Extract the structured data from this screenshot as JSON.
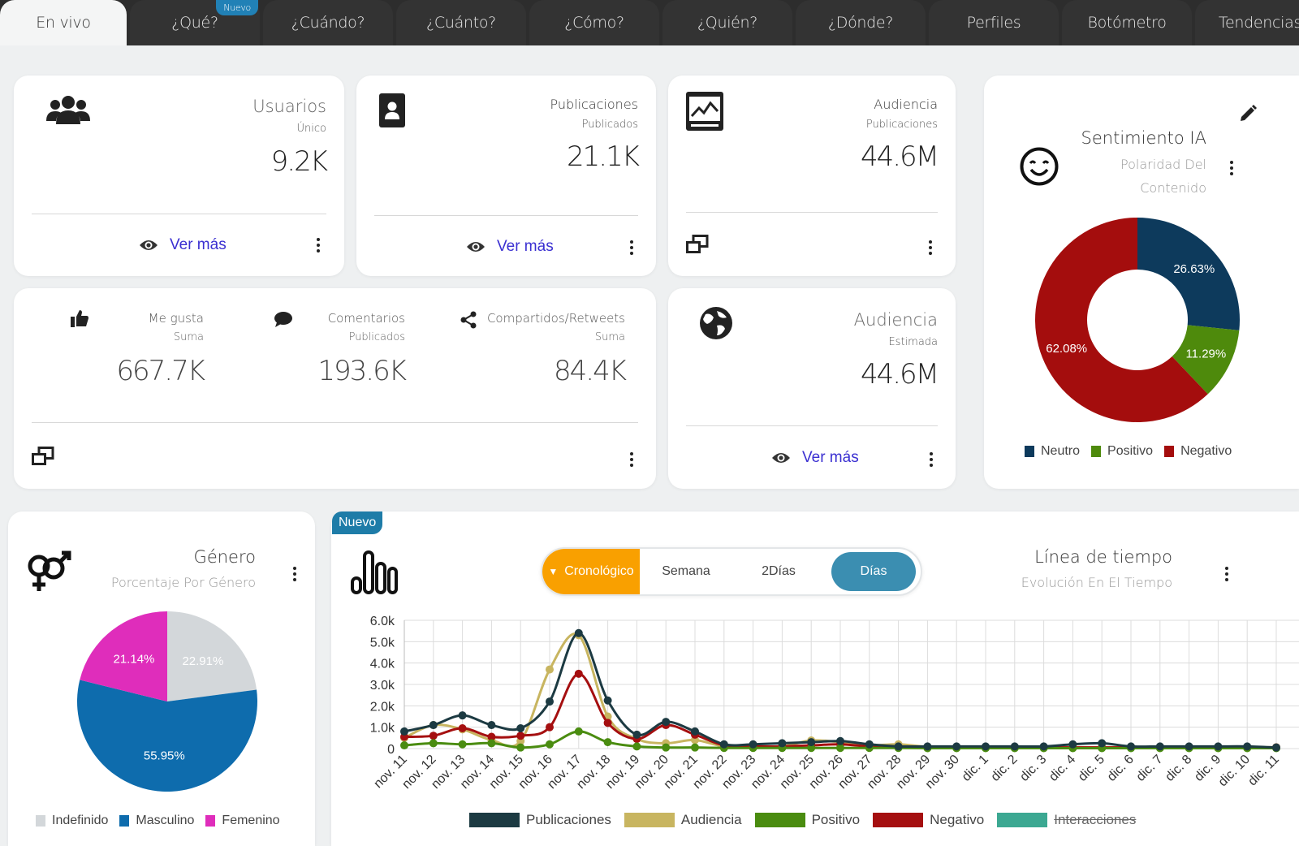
{
  "tabs": [
    {
      "label": "En vivo",
      "active": true
    },
    {
      "label": "¿Qué?",
      "badge": "Nuevo"
    },
    {
      "label": "¿Cuándo?"
    },
    {
      "label": "¿Cuánto?"
    },
    {
      "label": "¿Cómo?"
    },
    {
      "label": "¿Quién?"
    },
    {
      "label": "¿Dónde?"
    },
    {
      "label": "Perfiles"
    },
    {
      "label": "Botómetro"
    },
    {
      "label": "Tendencias"
    }
  ],
  "cards": {
    "usuarios": {
      "title": "Usuarios",
      "sub": "Único",
      "value": "9.2K",
      "link": "Ver más"
    },
    "publicaciones": {
      "title": "Publicaciones",
      "sub": "Publicados",
      "value": "21.1K",
      "link": "Ver más"
    },
    "audiencia_pub": {
      "title": "Audiencia",
      "sub": "Publicaciones",
      "value": "44.6M"
    },
    "interacciones": {
      "likes": {
        "label": "Me gusta",
        "sub": "Suma",
        "value": "667.7K"
      },
      "comments": {
        "label": "Comentarios",
        "sub": "Publicados",
        "value": "193.6K"
      },
      "shares": {
        "label": "Compartidos/Retweets",
        "sub": "Suma",
        "value": "84.4K"
      }
    },
    "audiencia_est": {
      "title": "Audiencia",
      "sub": "Estimada",
      "value": "44.6M",
      "link": "Ver más"
    },
    "sentimiento": {
      "title": "Sentimiento IA",
      "sub1": "Polaridad Del",
      "sub2": "Contenido"
    },
    "genero": {
      "title": "Género",
      "sub": "Porcentaje Por Género"
    },
    "timeline": {
      "badge": "Nuevo",
      "title": "Línea de tiempo",
      "sub": "Evolución En El Tiempo",
      "segments": [
        "Cronológico",
        "Semana",
        "2Días",
        "Días"
      ],
      "selected": "Días"
    }
  },
  "icons": {
    "usuarios": "users-icon",
    "publicaciones": "contact-card-icon",
    "audiencia": "chart-screen-icon",
    "likes": "thumbs-up-icon",
    "comments": "comment-icon",
    "shares": "share-icon",
    "globe": "globe-icon",
    "smile": "smile-icon",
    "edit": "pencil-icon",
    "gender": "gender-icon",
    "timeline": "bar-signal-icon",
    "eye": "eye-icon",
    "windows": "windows-icon"
  },
  "chart_data": [
    {
      "type": "pie",
      "title": "Sentimiento IA",
      "donut": true,
      "categories": [
        "Neutro",
        "Positivo",
        "Negativo"
      ],
      "values": [
        26.63,
        11.29,
        62.08
      ],
      "labels": [
        "26.63%",
        "11.29%",
        "62.08%"
      ],
      "colors": [
        "#0d3a5c",
        "#4e8a0c",
        "#a40d0d"
      ],
      "legend": "bottom"
    },
    {
      "type": "pie",
      "title": "Género",
      "categories": [
        "Indefinido",
        "Masculino",
        "Femenino"
      ],
      "values": [
        22.91,
        55.95,
        21.14
      ],
      "labels": [
        "22.91%",
        "55.95%",
        "21.14%"
      ],
      "colors": [
        "#d3d7da",
        "#0e6cad",
        "#df2dbb"
      ],
      "legend": "bottom"
    },
    {
      "type": "line",
      "title": "Línea de tiempo",
      "categories": [
        "nov. 11",
        "nov. 12",
        "nov. 13",
        "nov. 14",
        "nov. 15",
        "nov. 16",
        "nov. 17",
        "nov. 18",
        "nov. 19",
        "nov. 20",
        "nov. 21",
        "nov. 22",
        "nov. 23",
        "nov. 24",
        "nov. 25",
        "nov. 26",
        "nov. 27",
        "nov. 28",
        "nov. 29",
        "nov. 30",
        "dic. 1",
        "dic. 2",
        "dic. 3",
        "dic. 4",
        "dic. 5",
        "dic. 6",
        "dic. 7",
        "dic. 8",
        "dic. 9",
        "dic. 10",
        "dic. 11"
      ],
      "yticks": [
        "0",
        "1.0k",
        "2.0k",
        "3.0k",
        "4.0k",
        "5.0k",
        "6.0k"
      ],
      "ylim": [
        0,
        6000
      ],
      "grid": true,
      "legend": "bottom",
      "series": [
        {
          "name": "Audiencia",
          "color": "#c8b560",
          "values": [
            500,
            1100,
            900,
            400,
            350,
            3700,
            5300,
            1500,
            450,
            250,
            400,
            100,
            120,
            100,
            380,
            300,
            150,
            200,
            80,
            60,
            60,
            60,
            60,
            60,
            60,
            60,
            60,
            60,
            60,
            60,
            60
          ]
        },
        {
          "name": "Negativo",
          "color": "#a50f10",
          "values": [
            550,
            600,
            950,
            550,
            600,
            1000,
            3500,
            1200,
            450,
            1100,
            650,
            150,
            100,
            100,
            150,
            200,
            100,
            80,
            60,
            50,
            50,
            50,
            50,
            50,
            50,
            50,
            50,
            50,
            50,
            50,
            50
          ]
        },
        {
          "name": "Positivo",
          "color": "#4a8c10",
          "values": [
            150,
            250,
            200,
            250,
            50,
            200,
            800,
            300,
            100,
            50,
            50,
            30,
            30,
            30,
            30,
            30,
            30,
            30,
            20,
            20,
            20,
            20,
            20,
            20,
            20,
            20,
            20,
            20,
            20,
            20,
            20
          ]
        },
        {
          "name": "Publicaciones",
          "color": "#1c3a42",
          "values": [
            800,
            1100,
            1550,
            1100,
            950,
            2200,
            5400,
            2250,
            650,
            1250,
            800,
            200,
            200,
            250,
            300,
            350,
            200,
            100,
            100,
            100,
            100,
            100,
            100,
            200,
            250,
            100,
            100,
            100,
            100,
            100,
            50
          ]
        }
      ],
      "legend_items": [
        {
          "name": "Publicaciones",
          "color": "#1c3a42"
        },
        {
          "name": "Audiencia",
          "color": "#c8b560"
        },
        {
          "name": "Positivo",
          "color": "#4a8c10"
        },
        {
          "name": "Negativo",
          "color": "#a50f10"
        },
        {
          "name": "Interacciones",
          "color": "#3ca892",
          "hidden": true
        }
      ]
    }
  ]
}
